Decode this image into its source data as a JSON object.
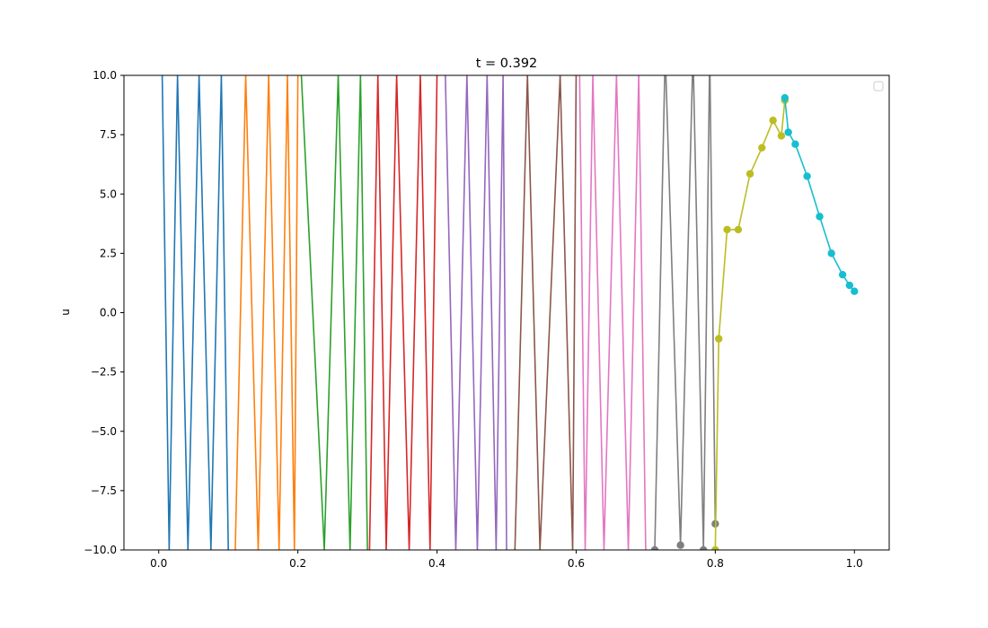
{
  "chart_data": {
    "type": "line",
    "title": "t = 0.392",
    "xlabel": "",
    "ylabel": "u",
    "xlim": [
      -0.05,
      1.05
    ],
    "ylim": [
      -10,
      10
    ],
    "xticks": [
      0.0,
      0.2,
      0.4,
      0.6,
      0.8,
      1.0
    ],
    "xtick_labels": [
      "0.0",
      "0.2",
      "0.4",
      "0.6",
      "0.8",
      "1.0"
    ],
    "yticks": [
      -10,
      -7.5,
      -5,
      -2.5,
      0,
      2.5,
      5,
      7.5,
      10
    ],
    "ytick_labels": [
      "−10.0",
      "−7.5",
      "−5.0",
      "−2.5",
      "0.0",
      "2.5",
      "5.0",
      "7.5",
      "10.0"
    ],
    "grid": false,
    "legend": {
      "placement": "top-right",
      "entries": []
    },
    "series": [
      {
        "color": "#1f77b4",
        "x": [
          0.005,
          0.015,
          0.027,
          0.042,
          0.058,
          0.075,
          0.09,
          0.1
        ],
        "y": [
          10,
          -10,
          10,
          -10,
          10,
          -10,
          10,
          -10
        ],
        "markers_visible": false
      },
      {
        "color": "#ff7f0e",
        "x": [
          0.11,
          0.125,
          0.143,
          0.158,
          0.173,
          0.185,
          0.195,
          0.2
        ],
        "y": [
          -10,
          10,
          -10,
          10,
          -10,
          10,
          -10,
          10
        ],
        "markers_visible": false
      },
      {
        "color": "#2ca02c",
        "x": [
          0.205,
          0.238,
          0.258,
          0.275,
          0.29,
          0.3
        ],
        "y": [
          10,
          -10,
          10,
          -10,
          10,
          -10
        ],
        "markers_visible": false
      },
      {
        "color": "#d62728",
        "x": [
          0.303,
          0.315,
          0.327,
          0.342,
          0.36,
          0.376,
          0.39,
          0.4
        ],
        "y": [
          -10,
          10,
          -10,
          10,
          -10,
          10,
          -10,
          10
        ],
        "markers_visible": false
      },
      {
        "color": "#9467bd",
        "x": [
          0.412,
          0.427,
          0.443,
          0.458,
          0.472,
          0.485,
          0.495,
          0.5
        ],
        "y": [
          10,
          -10,
          10,
          -10,
          10,
          -10,
          10,
          -10
        ],
        "markers_visible": false
      },
      {
        "color": "#8c564b",
        "x": [
          0.512,
          0.53,
          0.548,
          0.577,
          0.595,
          0.6
        ],
        "y": [
          -10,
          10,
          -10,
          10,
          -10,
          10
        ],
        "markers_visible": false
      },
      {
        "color": "#e377c2",
        "x": [
          0.605,
          0.613,
          0.624,
          0.64,
          0.658,
          0.675,
          0.69,
          0.7
        ],
        "y": [
          10,
          -10,
          10,
          -10,
          10,
          -10,
          10,
          -10
        ],
        "markers_visible": false
      },
      {
        "color": "#7f7f7f",
        "x": [
          0.713,
          0.728,
          0.75,
          0.768,
          0.783,
          0.792,
          0.8
        ],
        "y": [
          -10,
          11,
          -9.8,
          11,
          -10,
          11,
          -8.9
        ],
        "markers_visible": true
      },
      {
        "color": "#bcbd22",
        "x": [
          0.8,
          0.805,
          0.817,
          0.833,
          0.85,
          0.867,
          0.883,
          0.895,
          0.9
        ],
        "y": [
          -10,
          -1.1,
          3.5,
          3.5,
          5.85,
          6.95,
          8.1,
          7.45,
          8.95
        ],
        "markers_visible": true
      },
      {
        "color": "#17becf",
        "x": [
          0.9,
          0.905,
          0.915,
          0.932,
          0.95,
          0.967,
          0.983,
          0.993,
          1.0
        ],
        "y": [
          9.05,
          7.6,
          7.1,
          5.75,
          4.05,
          2.5,
          1.6,
          1.15,
          0.9
        ],
        "markers_visible": true
      }
    ]
  }
}
